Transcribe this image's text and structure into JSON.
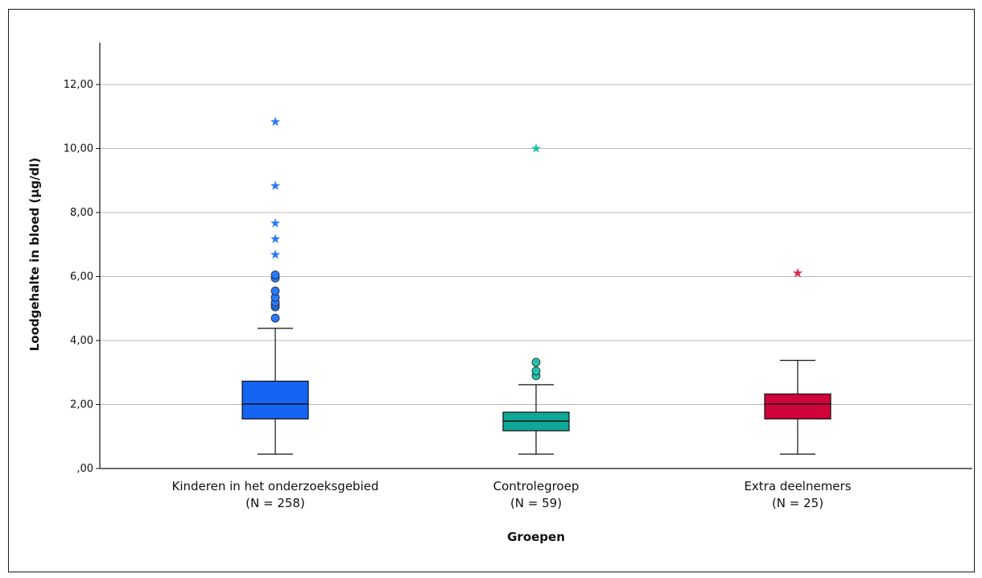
{
  "chart_data": {
    "type": "boxplot",
    "xlabel": "Groepen",
    "ylabel": "Loodgehalte in bloed (µg/dl)",
    "ylim": [
      0,
      13.2
    ],
    "yticks": [
      0,
      2,
      4,
      6,
      8,
      10,
      12
    ],
    "ytick_labels": [
      ",00",
      "2,00",
      "4,00",
      "6,00",
      "8,00",
      "10,00",
      "12,00"
    ],
    "grid": "horizontal",
    "groups": [
      {
        "label": "Kinderen in het onderzoeksgebied",
        "n_label": "(N = 258)",
        "color": "#1565f5",
        "outlier_color": "#2979ff",
        "whisker_low": 0.45,
        "q1": 1.55,
        "median": 2.02,
        "q3": 2.73,
        "whisker_high": 4.38,
        "outliers": [
          4.7,
          5.05,
          5.12,
          5.2,
          5.35,
          5.55,
          5.95,
          6.05
        ],
        "extremes": [
          6.7,
          7.2,
          7.68,
          8.85,
          10.85
        ]
      },
      {
        "label": "Controlegroep",
        "n_label": "(N = 59)",
        "color": "#0fa896",
        "outlier_color": "#22c1ad",
        "whisker_low": 0.45,
        "q1": 1.18,
        "median": 1.48,
        "q3": 1.76,
        "whisker_high": 2.62,
        "outliers": [
          2.9,
          3.05,
          3.32
        ],
        "extremes": [
          10.02
        ]
      },
      {
        "label": "Extra deelnemers",
        "n_label": "(N = 25)",
        "color": "#d0033a",
        "outlier_color": "#e0244f",
        "whisker_low": 0.45,
        "q1": 1.55,
        "median": 2.02,
        "q3": 2.33,
        "whisker_high": 3.38,
        "outliers": [],
        "extremes": [
          6.12
        ]
      }
    ]
  }
}
